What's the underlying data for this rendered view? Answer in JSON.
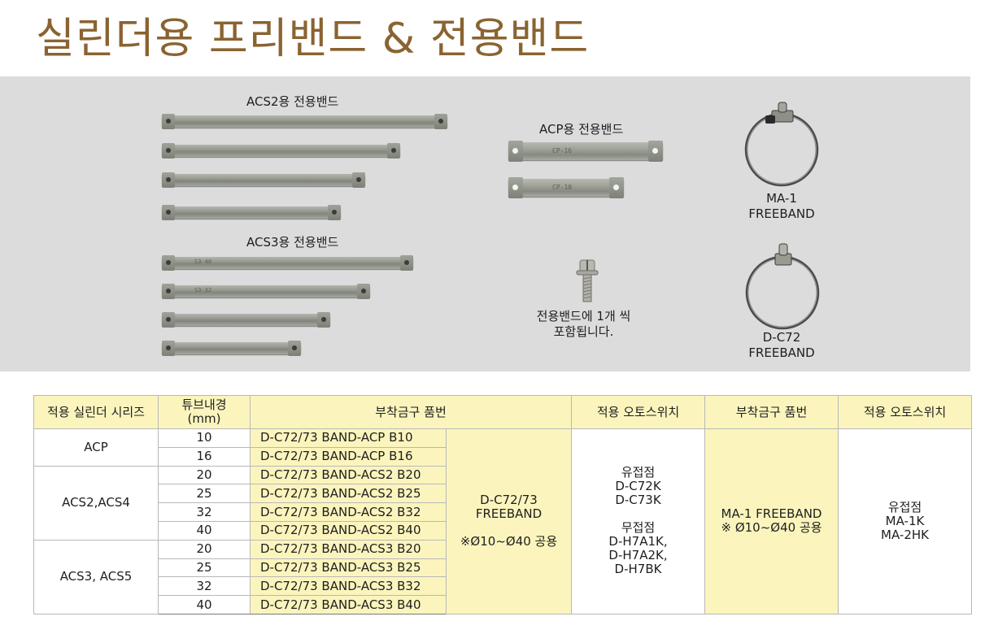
{
  "page": {
    "title": "실린더용 프리밴드 & 전용밴드"
  },
  "photo": {
    "acs2_label": "ACS2용 전용밴드",
    "acs3_label": "ACS3용 전용밴드",
    "acp_label": "ACP용 전용밴드",
    "acp_band_etch": [
      "CP-16",
      "CP-10"
    ],
    "acs3_band_etch": [
      "S3-40",
      "S3-32"
    ],
    "screw_caption": "전용밴드에 1개 씩\n포함됩니다.",
    "ma1_caption": "MA-1\nFREEBAND",
    "dc72_caption": "D-C72\nFREEBAND"
  },
  "table": {
    "headers": [
      "적용 실린더 시리즈",
      "튜브내경\n(mm)",
      "부착금구 품번",
      "적용 오토스위치",
      "부착금구 품번",
      "적용 오토스위치"
    ],
    "groups": [
      {
        "series": "ACP",
        "rows": [
          {
            "bore": "10",
            "code": "D-C72/73 BAND-ACP B10"
          },
          {
            "bore": "16",
            "code": "D-C72/73 BAND-ACP B16"
          }
        ]
      },
      {
        "series": "ACS2,ACS4",
        "rows": [
          {
            "bore": "20",
            "code": "D-C72/73 BAND-ACS2 B20"
          },
          {
            "bore": "25",
            "code": "D-C72/73 BAND-ACS2 B25"
          },
          {
            "bore": "32",
            "code": "D-C72/73 BAND-ACS2 B32"
          },
          {
            "bore": "40",
            "code": "D-C72/73 BAND-ACS2 B40"
          }
        ]
      },
      {
        "series": "ACS3, ACS5",
        "rows": [
          {
            "bore": "20",
            "code": "D-C72/73 BAND-ACS3 B20"
          },
          {
            "bore": "25",
            "code": "D-C72/73 BAND-ACS3 B25"
          },
          {
            "bore": "32",
            "code": "D-C72/73 BAND-ACS3 B32"
          },
          {
            "bore": "40",
            "code": "D-C72/73 BAND-ACS3 B40"
          }
        ]
      }
    ],
    "freeband_cell": "D-C72/73\nFREEBAND\n\n※Ø10~Ø40 공용",
    "switch_cell_1": "유접점\nD-C72K\nD-C73K\n\n무접점\nD-H7A1K,\nD-H7A2K,\nD-H7BK",
    "ma1_cell": "MA-1 FREEBAND\n※ Ø10~Ø40 공용",
    "switch_cell_2": "유접점\nMA-1K\nMA-2HK"
  },
  "colors": {
    "title": "#8a6331",
    "header_fill": "#fbf5bd",
    "photo_bg": "#dcdcdd"
  }
}
